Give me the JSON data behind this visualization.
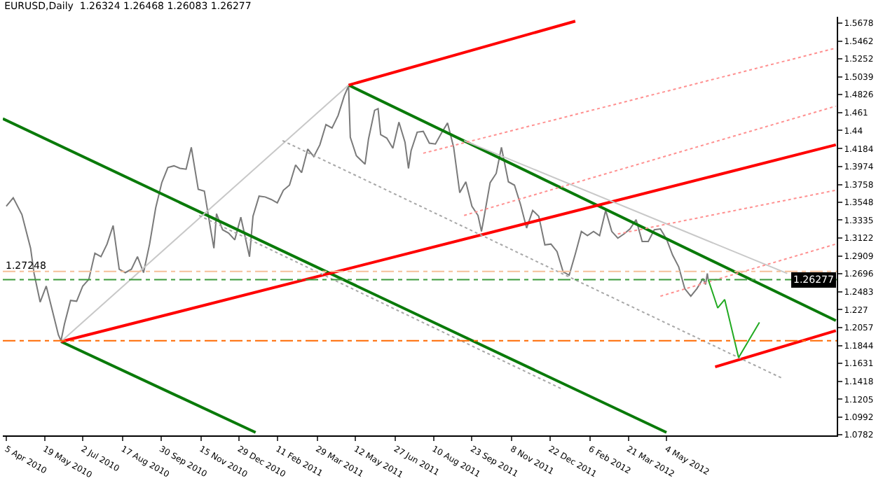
{
  "chart_data": {
    "type": "line",
    "title": "EURUSD,Daily  1.26324 1.26468 1.26083 1.26277",
    "xlim": [
      "2010-04-01",
      "2012-11-16"
    ],
    "xticks": [
      {
        "value": "2010-04-05",
        "label": "5 Apr 2010"
      },
      {
        "value": "2010-05-19",
        "label": "19 May 2010"
      },
      {
        "value": "2010-07-02",
        "label": "2 Jul 2010"
      },
      {
        "value": "2010-08-17",
        "label": "17 Aug 2010"
      },
      {
        "value": "2010-09-30",
        "label": "30 Sep 2010"
      },
      {
        "value": "2010-11-15",
        "label": "15 Nov 2010"
      },
      {
        "value": "2010-12-29",
        "label": "29 Dec 2010"
      },
      {
        "value": "2011-02-11",
        "label": "11 Feb 2011"
      },
      {
        "value": "2011-03-29",
        "label": "29 Mar 2011"
      },
      {
        "value": "2011-05-12",
        "label": "12 May 2011"
      },
      {
        "value": "2011-06-27",
        "label": "27 Jun 2011"
      },
      {
        "value": "2011-08-10",
        "label": "10 Aug 2011"
      },
      {
        "value": "2011-09-23",
        "label": "23 Sep 2011"
      },
      {
        "value": "2011-11-08",
        "label": "8 Nov 2011"
      },
      {
        "value": "2011-12-22",
        "label": "22 Dec 2011"
      },
      {
        "value": "2012-02-06",
        "label": "6 Feb 2012"
      },
      {
        "value": "2012-03-21",
        "label": "21 Mar 2012"
      },
      {
        "value": "2012-05-04",
        "label": "4 May 2012"
      }
    ],
    "ylim": [
      1.0775,
      1.5752
    ],
    "yticks": [
      1.0782,
      1.0992,
      1.1205,
      1.1418,
      1.1631,
      1.1844,
      1.2057,
      1.227,
      1.2483,
      1.2696,
      1.2909,
      1.3122,
      1.3335,
      1.3548,
      1.3758,
      1.3974,
      1.4184,
      1.44,
      1.461,
      1.4826,
      1.5039,
      1.5252,
      1.5462,
      1.5678
    ],
    "ref_lines": [
      {
        "axis": "y",
        "value": 1.19,
        "color": "#ff6a00",
        "line_style": "dashdot"
      },
      {
        "axis": "y",
        "value": 1.27248,
        "color": "#f5c09a",
        "line_style": "dashdot",
        "label": "1.27248"
      },
      {
        "axis": "y",
        "value": 1.26277,
        "color": "#3a9a3a",
        "line_style": "dashdot",
        "label": "1.26277"
      }
    ],
    "series": [
      {
        "color": "#7a7a7a",
        "line_style": "solid",
        "x": [
          "2010-04-05",
          "2010-04-13",
          "2010-04-23",
          "2010-05-03",
          "2010-05-07",
          "2010-05-14",
          "2010-05-21",
          "2010-05-28",
          "2010-06-04",
          "2010-06-07",
          "2010-06-11",
          "2010-06-18",
          "2010-06-25",
          "2010-07-02",
          "2010-07-09",
          "2010-07-16",
          "2010-07-23",
          "2010-07-30",
          "2010-08-06",
          "2010-08-13",
          "2010-08-20",
          "2010-08-27",
          "2010-09-03",
          "2010-09-10",
          "2010-09-17",
          "2010-09-24",
          "2010-10-01",
          "2010-10-08",
          "2010-10-15",
          "2010-10-22",
          "2010-10-29",
          "2010-11-04",
          "2010-11-12",
          "2010-11-19",
          "2010-11-26",
          "2010-11-30",
          "2010-12-03",
          "2010-12-10",
          "2010-12-17",
          "2010-12-24",
          "2010-12-31",
          "2011-01-10",
          "2011-01-14",
          "2011-01-21",
          "2011-01-28",
          "2011-02-04",
          "2011-02-11",
          "2011-02-18",
          "2011-02-25",
          "2011-03-04",
          "2011-03-11",
          "2011-03-18",
          "2011-03-25",
          "2011-04-01",
          "2011-04-08",
          "2011-04-15",
          "2011-04-22",
          "2011-04-29",
          "2011-05-04",
          "2011-05-06",
          "2011-05-13",
          "2011-05-23",
          "2011-05-27",
          "2011-06-03",
          "2011-06-07",
          "2011-06-10",
          "2011-06-17",
          "2011-06-24",
          "2011-07-01",
          "2011-07-08",
          "2011-07-12",
          "2011-07-15",
          "2011-07-22",
          "2011-07-29",
          "2011-08-05",
          "2011-08-12",
          "2011-08-19",
          "2011-08-26",
          "2011-09-02",
          "2011-09-09",
          "2011-09-16",
          "2011-09-23",
          "2011-09-30",
          "2011-10-04",
          "2011-10-07",
          "2011-10-14",
          "2011-10-21",
          "2011-10-27",
          "2011-11-04",
          "2011-11-11",
          "2011-11-18",
          "2011-11-25",
          "2011-12-02",
          "2011-12-09",
          "2011-12-16",
          "2011-12-23",
          "2011-12-30",
          "2012-01-06",
          "2012-01-13",
          "2012-01-20",
          "2012-01-27",
          "2012-02-03",
          "2012-02-10",
          "2012-02-17",
          "2012-02-24",
          "2012-03-02",
          "2012-03-09",
          "2012-03-16",
          "2012-03-23",
          "2012-03-30",
          "2012-04-06",
          "2012-04-13",
          "2012-04-20",
          "2012-04-27",
          "2012-05-04",
          "2012-05-11",
          "2012-05-18",
          "2012-05-25",
          "2012-06-01",
          "2012-06-08",
          "2012-06-15",
          "2012-06-18",
          "2012-06-20",
          "2012-06-21"
        ],
        "values": [
          1.35,
          1.36,
          1.34,
          1.3,
          1.27,
          1.236,
          1.255,
          1.226,
          1.197,
          1.19,
          1.21,
          1.238,
          1.237,
          1.255,
          1.263,
          1.294,
          1.29,
          1.305,
          1.327,
          1.275,
          1.271,
          1.275,
          1.29,
          1.271,
          1.305,
          1.348,
          1.378,
          1.396,
          1.398,
          1.395,
          1.394,
          1.42,
          1.37,
          1.368,
          1.324,
          1.3,
          1.341,
          1.322,
          1.318,
          1.31,
          1.337,
          1.29,
          1.338,
          1.362,
          1.361,
          1.358,
          1.354,
          1.369,
          1.375,
          1.399,
          1.39,
          1.418,
          1.409,
          1.423,
          1.447,
          1.443,
          1.458,
          1.481,
          1.493,
          1.432,
          1.41,
          1.4,
          1.43,
          1.464,
          1.466,
          1.435,
          1.431,
          1.419,
          1.45,
          1.426,
          1.395,
          1.416,
          1.438,
          1.439,
          1.425,
          1.424,
          1.437,
          1.449,
          1.42,
          1.366,
          1.379,
          1.35,
          1.339,
          1.32,
          1.337,
          1.378,
          1.389,
          1.42,
          1.379,
          1.375,
          1.352,
          1.324,
          1.345,
          1.338,
          1.304,
          1.305,
          1.296,
          1.272,
          1.268,
          1.293,
          1.32,
          1.315,
          1.32,
          1.315,
          1.345,
          1.32,
          1.312,
          1.317,
          1.323,
          1.334,
          1.308,
          1.308,
          1.322,
          1.323,
          1.311,
          1.292,
          1.278,
          1.252,
          1.243,
          1.252,
          1.264,
          1.257,
          1.27,
          1.263
        ]
      },
      {
        "color": "#0a7a0a",
        "line_style": "solid",
        "x": [
          "2010-04-01",
          "2012-05-04"
        ],
        "values": [
          1.454,
          1.081
        ]
      },
      {
        "color": "#0a7a0a",
        "line_style": "solid",
        "x": [
          "2010-06-07",
          "2011-01-17"
        ],
        "values": [
          1.189,
          1.081
        ]
      },
      {
        "color": "#0a7a0a",
        "line_style": "solid",
        "x": [
          "2011-05-04",
          "2012-11-15"
        ],
        "values": [
          1.494,
          1.214
        ]
      },
      {
        "color": "#ff0000",
        "line_style": "solid",
        "x": [
          "2010-06-07",
          "2012-11-15"
        ],
        "values": [
          1.189,
          1.423
        ]
      },
      {
        "color": "#ff0000",
        "line_style": "solid",
        "x": [
          "2011-05-04",
          "2012-01-20"
        ],
        "values": [
          1.494,
          1.57
        ]
      },
      {
        "color": "#ff0000",
        "line_style": "solid",
        "x": [
          "2012-06-29",
          "2012-11-15"
        ],
        "values": [
          1.159,
          1.202
        ]
      },
      {
        "color": "#c8c8c8",
        "line_style": "solid",
        "x": [
          "2010-06-07",
          "2011-05-04"
        ],
        "values": [
          1.189,
          1.494
        ]
      },
      {
        "color": "#c8c8c8",
        "line_style": "solid",
        "x": [
          "2011-09-14",
          "2012-09-20"
        ],
        "values": [
          1.428,
          1.27
        ]
      },
      {
        "color": "#ff9090",
        "line_style": "dotted",
        "x": [
          "2011-07-29",
          "2012-11-15"
        ],
        "values": [
          1.413,
          1.538
        ]
      },
      {
        "color": "#ff9090",
        "line_style": "dotted",
        "x": [
          "2011-09-14",
          "2012-11-15"
        ],
        "values": [
          1.339,
          1.469
        ]
      },
      {
        "color": "#ff9090",
        "line_style": "dotted",
        "x": [
          "2012-03-09",
          "2012-11-15"
        ],
        "values": [
          1.317,
          1.369
        ]
      },
      {
        "color": "#ff9090",
        "line_style": "dotted",
        "x": [
          "2012-04-27",
          "2012-11-15"
        ],
        "values": [
          1.243,
          1.305
        ]
      },
      {
        "color": "#a8a8a8",
        "line_style": "dotted",
        "x": [
          "2010-11-13",
          "2012-01-04"
        ],
        "values": [
          1.339,
          1.133
        ]
      },
      {
        "color": "#a8a8a8",
        "line_style": "dotted",
        "x": [
          "2011-02-17",
          "2012-09-15"
        ],
        "values": [
          1.428,
          1.145
        ]
      },
      {
        "color": "#22aa22",
        "line_style": "solid",
        "x": [
          "2012-06-21",
          "2012-07-02",
          "2012-07-10",
          "2012-07-26",
          "2012-08-19"
        ],
        "values": [
          1.263,
          1.229,
          1.239,
          1.17,
          1.212
        ]
      }
    ]
  }
}
